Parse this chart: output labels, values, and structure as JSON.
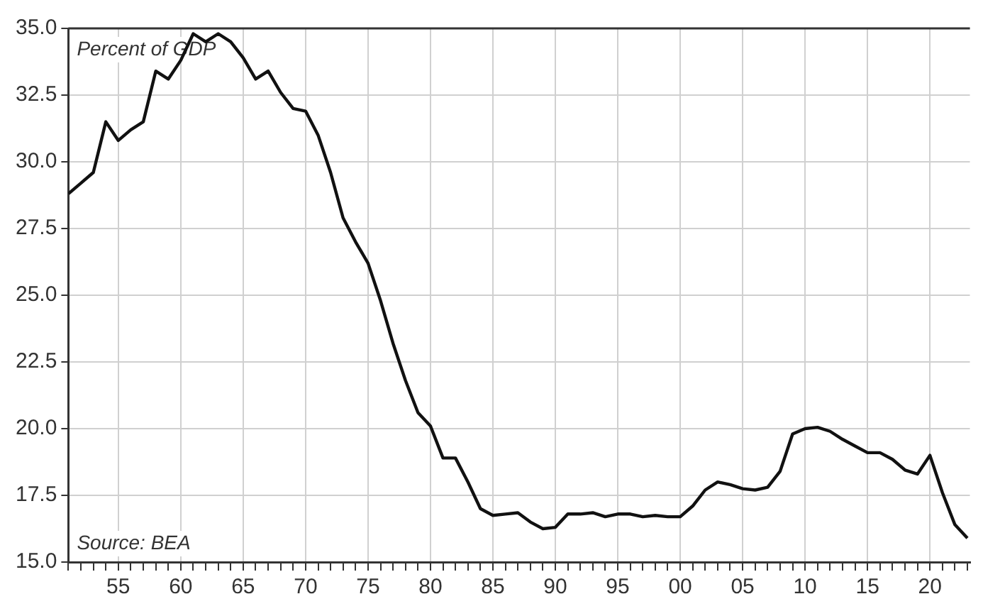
{
  "chart_data": {
    "type": "line",
    "annotations": [
      "Percent of GDP",
      "Source: BEA"
    ],
    "x": [
      1951,
      1952,
      1953,
      1954,
      1955,
      1956,
      1957,
      1958,
      1959,
      1960,
      1961,
      1962,
      1963,
      1964,
      1965,
      1966,
      1967,
      1968,
      1969,
      1970,
      1971,
      1972,
      1973,
      1974,
      1975,
      1976,
      1977,
      1978,
      1979,
      1980,
      1981,
      1982,
      1983,
      1984,
      1985,
      1986,
      1987,
      1988,
      1989,
      1990,
      1991,
      1992,
      1993,
      1994,
      1995,
      1996,
      1997,
      1998,
      1999,
      2000,
      2001,
      2002,
      2003,
      2004,
      2005,
      2006,
      2007,
      2008,
      2009,
      2010,
      2011,
      2012,
      2013,
      2014,
      2015,
      2016,
      2017,
      2018,
      2019,
      2020,
      2021,
      2022,
      2023
    ],
    "series": [
      {
        "color": "#111111",
        "values": [
          28.8,
          29.2,
          29.6,
          31.5,
          30.8,
          31.2,
          31.5,
          33.4,
          33.1,
          33.8,
          34.8,
          34.5,
          34.8,
          34.5,
          33.9,
          33.1,
          33.4,
          32.6,
          32.0,
          31.9,
          31.0,
          29.6,
          27.9,
          27.0,
          26.2,
          24.8,
          23.2,
          21.8,
          20.6,
          20.1,
          18.9,
          18.9,
          18.0,
          17.0,
          16.75,
          16.8,
          16.85,
          16.5,
          16.25,
          16.3,
          16.8,
          16.8,
          16.85,
          16.7,
          16.8,
          16.8,
          16.7,
          16.75,
          16.7,
          16.7,
          17.1,
          17.7,
          18.0,
          17.9,
          17.75,
          17.7,
          17.8,
          18.4,
          19.8,
          20.0,
          20.05,
          19.9,
          19.6,
          19.35,
          19.1,
          19.1,
          18.85,
          18.45,
          18.3,
          19.0,
          17.6,
          16.4,
          15.9
        ]
      }
    ],
    "xlim": [
      1951,
      2023.2
    ],
    "xticks": [
      {
        "value": 1955,
        "label": "55"
      },
      {
        "value": 1960,
        "label": "60"
      },
      {
        "value": 1965,
        "label": "65"
      },
      {
        "value": 1970,
        "label": "70"
      },
      {
        "value": 1975,
        "label": "75"
      },
      {
        "value": 1980,
        "label": "80"
      },
      {
        "value": 1985,
        "label": "85"
      },
      {
        "value": 1990,
        "label": "90"
      },
      {
        "value": 1995,
        "label": "95"
      },
      {
        "value": 2000,
        "label": "00"
      },
      {
        "value": 2005,
        "label": "05"
      },
      {
        "value": 2010,
        "label": "10"
      },
      {
        "value": 2015,
        "label": "15"
      },
      {
        "value": 2020,
        "label": "20"
      }
    ],
    "ylim": [
      15,
      35
    ],
    "yticks": [
      {
        "value": 15,
        "label": "15.0"
      },
      {
        "value": 17.5,
        "label": "17.5"
      },
      {
        "value": 20,
        "label": "20.0"
      },
      {
        "value": 22.5,
        "label": "22.5"
      },
      {
        "value": 25,
        "label": "25.0"
      },
      {
        "value": 27.5,
        "label": "27.5"
      },
      {
        "value": 30,
        "label": "30.0"
      },
      {
        "value": 32.5,
        "label": "32.5"
      },
      {
        "value": 35,
        "label": "35.0"
      }
    ],
    "grid": true,
    "marker": "none",
    "line_style": "solid",
    "legend": false
  }
}
